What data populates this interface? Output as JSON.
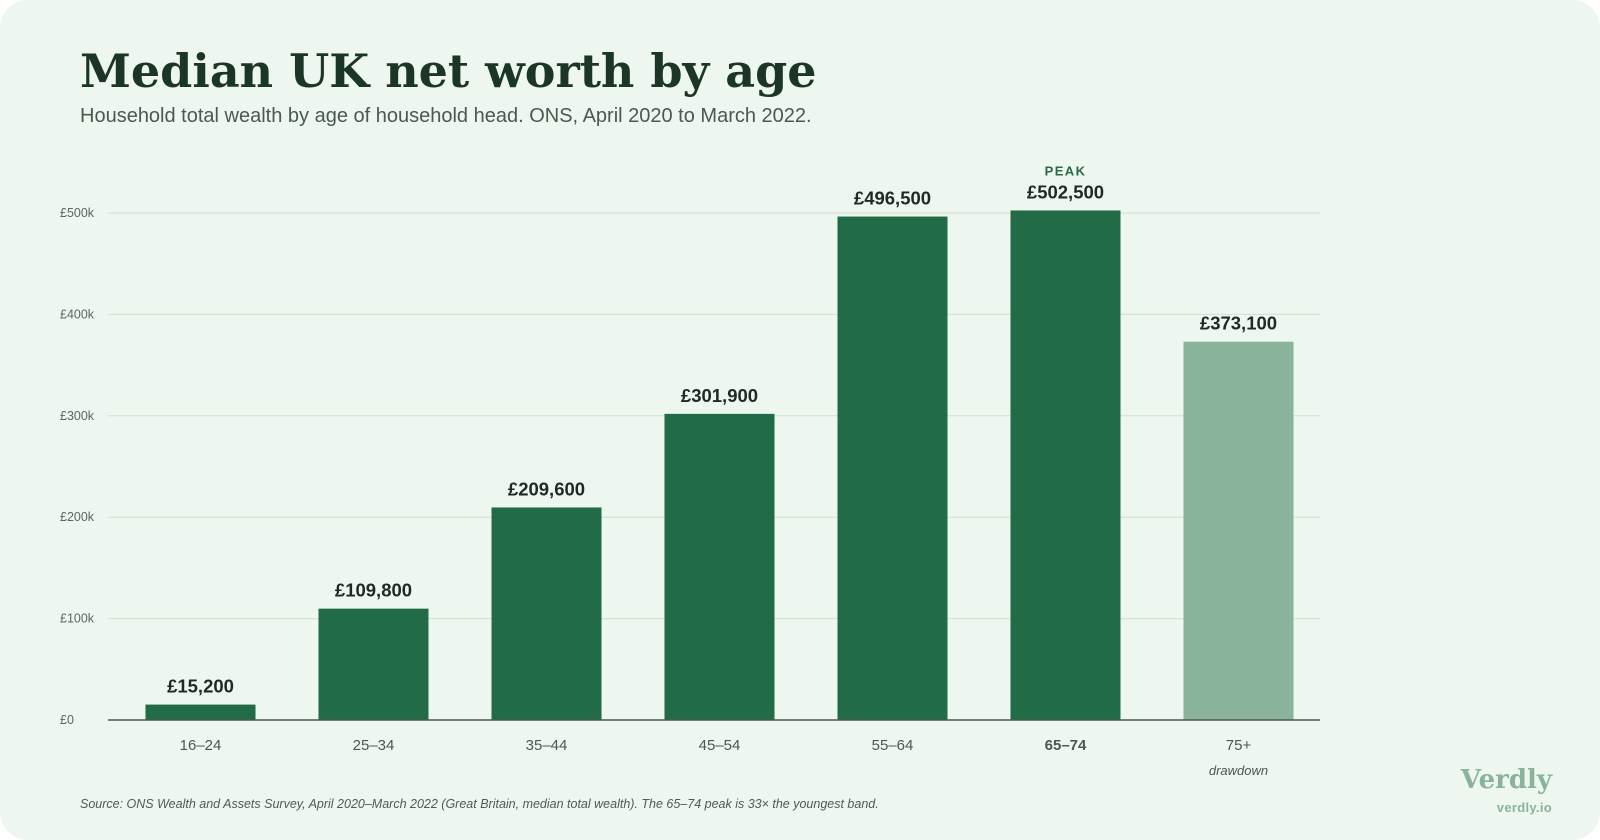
{
  "title": "Median UK net worth by age",
  "subtitle": "Household total wealth by age of household head. ONS, April 2020 to March 2022.",
  "source_note": "Source: ONS Wealth and Assets Survey, April 2020–March 2022 (Great Britain, median total wealth). The 65–74 peak is 33× the youngest band.",
  "brand": {
    "name": "Verdly",
    "url": "verdly.io"
  },
  "colors": {
    "bar": "#216b46",
    "bar_faded": "#8ab39c",
    "grid": "#cfe0d4",
    "axis": "#4a5a50",
    "peak_label": "#2a6b47"
  },
  "chart_data": {
    "type": "bar",
    "categories": [
      "16–24",
      "25–34",
      "35–44",
      "45–54",
      "55–64",
      "65–74",
      "75+"
    ],
    "values": [
      15200,
      109800,
      209600,
      301900,
      496500,
      502500,
      373100
    ],
    "value_labels": [
      "£15,200",
      "£109,800",
      "£209,600",
      "£301,900",
      "£496,500",
      "£502,500",
      "£373,100"
    ],
    "ylim": [
      0,
      500000
    ],
    "yticks": [
      0,
      100000,
      200000,
      300000,
      400000,
      500000
    ],
    "ytick_labels": [
      "£0",
      "£100k",
      "£200k",
      "£300k",
      "£400k",
      "£500k"
    ],
    "grid": true,
    "highlight": {
      "category": "65–74",
      "annotation": "PEAK"
    },
    "faded": {
      "category": "75+",
      "annotation": "drawdown"
    },
    "xlabel": "",
    "ylabel": ""
  }
}
